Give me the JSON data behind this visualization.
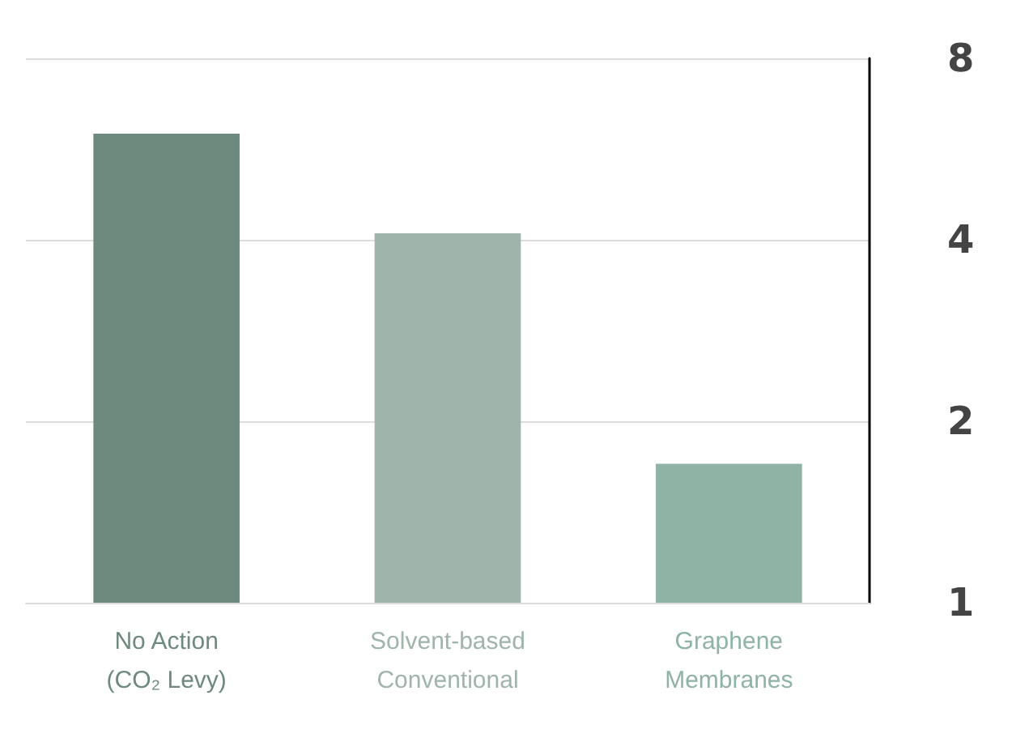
{
  "chart_data": {
    "type": "bar",
    "categories": [
      "No Action\n(CO₂ Levy)",
      "Solvent-based\nConventional",
      "Graphene\nMembranes"
    ],
    "values": [
      6.0,
      4.1,
      1.7
    ],
    "colors": [
      "#6e8a7e",
      "#9fb5ab",
      "#8fb3a5"
    ],
    "log": "y",
    "ylim": [
      1,
      8
    ],
    "yticks": [
      1,
      2,
      4,
      8
    ],
    "grid": "y"
  }
}
